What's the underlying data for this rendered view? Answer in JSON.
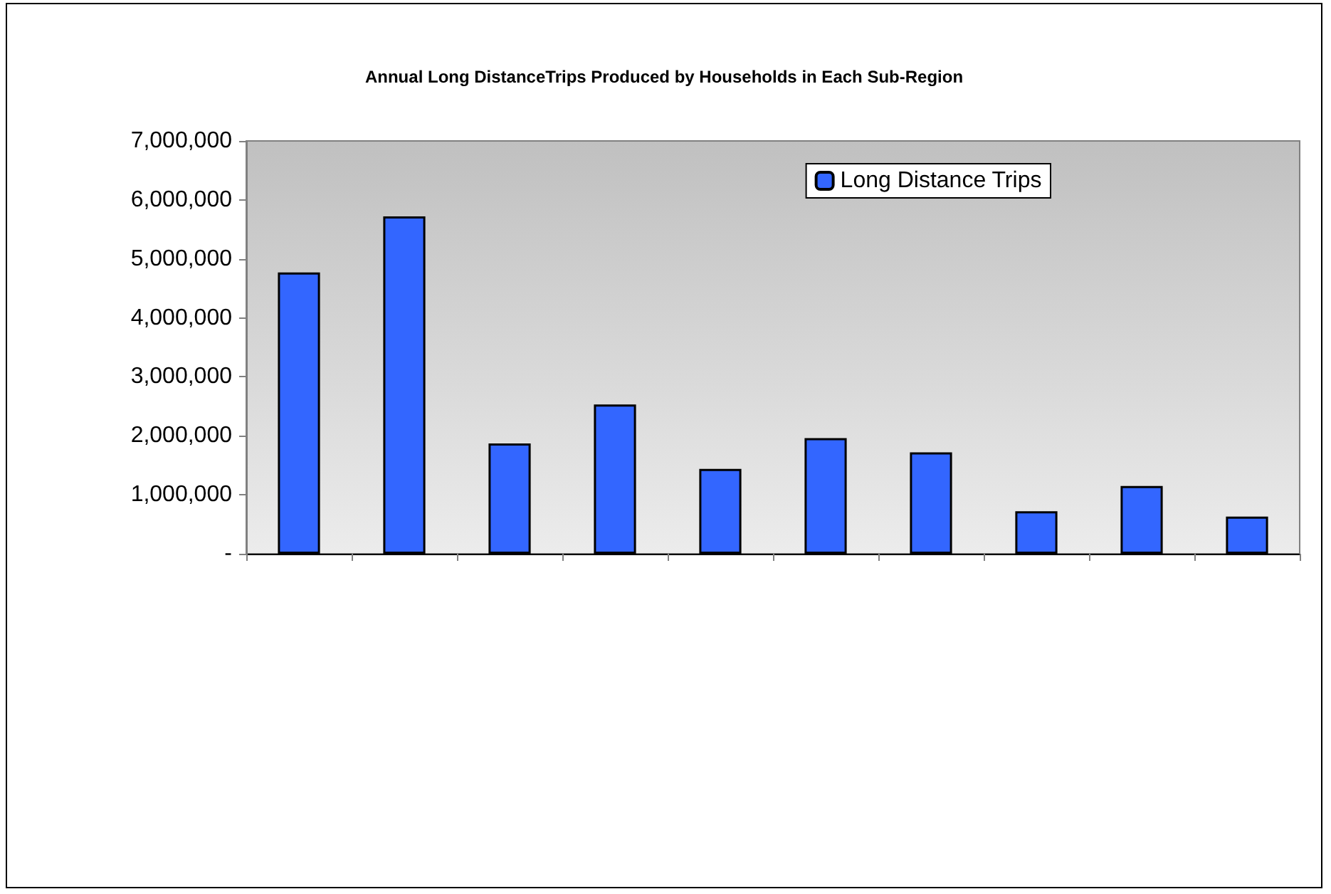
{
  "chart_data": {
    "type": "bar",
    "title": "Annual Long DistanceTrips Produced by Households in Each Sub-Region",
    "categories": [
      null,
      null,
      null,
      null,
      null,
      null,
      null,
      null,
      null,
      null
    ],
    "series": [
      {
        "name": "Long Distance Trips",
        "color": "#3366ff",
        "values": [
          4770000,
          5720000,
          1870000,
          2530000,
          1440000,
          1960000,
          1720000,
          720000,
          1150000,
          630000
        ]
      }
    ],
    "ylim": [
      0,
      7000000
    ],
    "yticks": [
      {
        "value": 0,
        "label": "-"
      },
      {
        "value": 1000000,
        "label": "1,000,000"
      },
      {
        "value": 2000000,
        "label": "2,000,000"
      },
      {
        "value": 3000000,
        "label": "3,000,000"
      },
      {
        "value": 4000000,
        "label": "4,000,000"
      },
      {
        "value": 5000000,
        "label": "5,000,000"
      },
      {
        "value": 6000000,
        "label": "6,000,000"
      },
      {
        "value": 7000000,
        "label": "7,000,000"
      }
    ],
    "grid": false,
    "legend": "top right"
  }
}
